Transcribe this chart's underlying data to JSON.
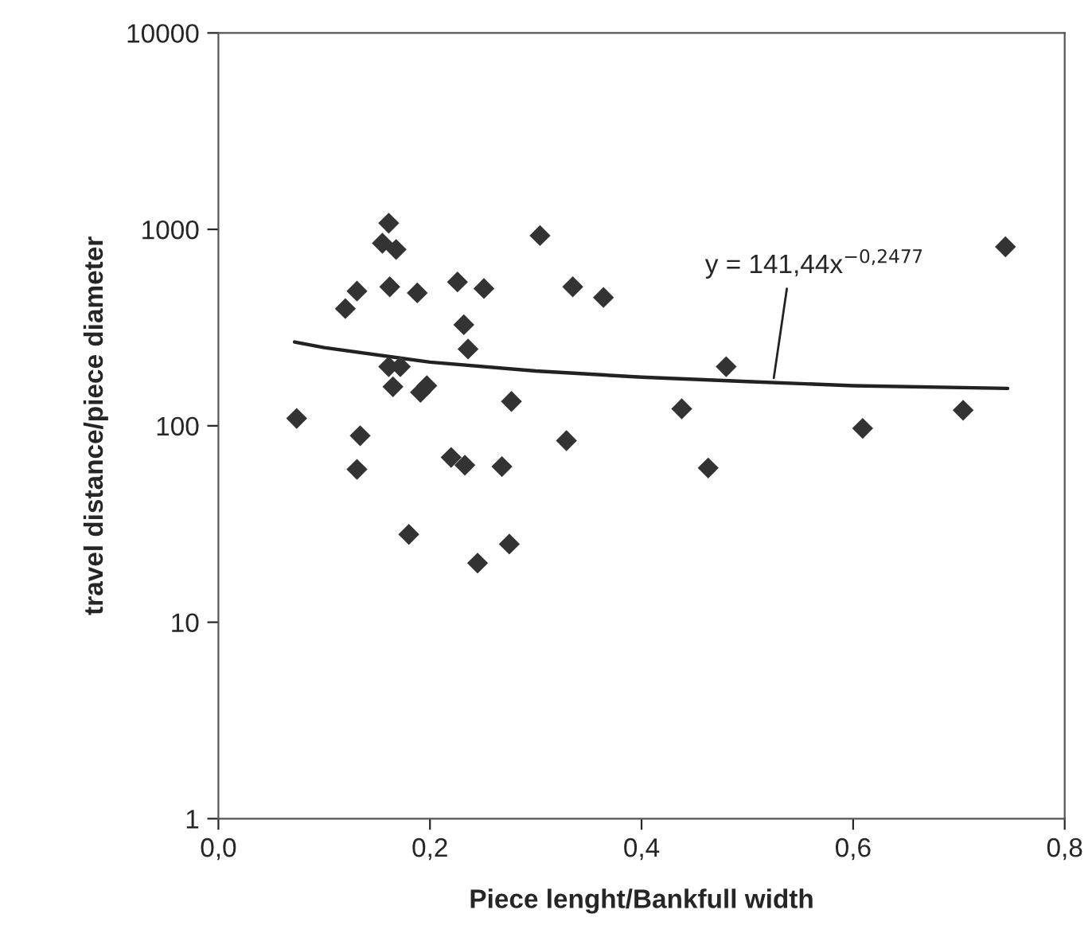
{
  "chart_data": {
    "type": "scatter",
    "xlabel": "Piece lenght/Bankfull width",
    "ylabel": "travel distance/piece diameter",
    "log": "y",
    "grid": false,
    "legend": false,
    "marker": "diamond",
    "xlim": [
      0.0,
      0.8
    ],
    "xticks": [
      {
        "value": 0.0,
        "label": "0,0"
      },
      {
        "value": 0.2,
        "label": "0,2"
      },
      {
        "value": 0.4,
        "label": "0,4"
      },
      {
        "value": 0.6,
        "label": "0,6"
      },
      {
        "value": 0.8,
        "label": "0,8"
      }
    ],
    "ylim": [
      1,
      10000
    ],
    "yticks": [
      1,
      10,
      100,
      1000,
      10000
    ],
    "annotations": [
      {
        "text": "y = 141,44x$^{−0,2477}$",
        "x": 0.525,
        "y": 175
      }
    ],
    "series": [
      {
        "color": "#333333",
        "x": [
          0.161,
          0.155,
          0.168,
          0.304,
          0.131,
          0.12,
          0.162,
          0.188,
          0.226,
          0.251,
          0.335,
          0.232,
          0.236,
          0.161,
          0.172,
          0.165,
          0.191,
          0.197,
          0.277,
          0.074,
          0.134,
          0.329,
          0.131,
          0.22,
          0.233,
          0.268,
          0.18,
          0.245,
          0.275,
          0.364,
          0.48,
          0.438,
          0.463,
          0.609,
          0.704,
          0.744
        ],
        "values": [
          1075,
          850,
          790,
          930,
          485,
          395,
          510,
          475,
          540,
          500,
          510,
          327,
          246,
          200,
          200,
          158,
          148,
          160,
          133,
          109,
          89,
          84,
          60,
          69,
          63,
          62,
          28,
          20,
          25,
          450,
          200,
          122,
          61,
          97,
          120,
          815
        ]
      },
      {
        "type": "line",
        "color": "#222222",
        "marker": "none",
        "x": [
          0.072,
          0.1,
          0.2,
          0.3,
          0.4,
          0.5,
          0.6,
          0.746
        ],
        "values": [
          267,
          250,
          211,
          190,
          177,
          168,
          160,
          155
        ]
      }
    ]
  }
}
